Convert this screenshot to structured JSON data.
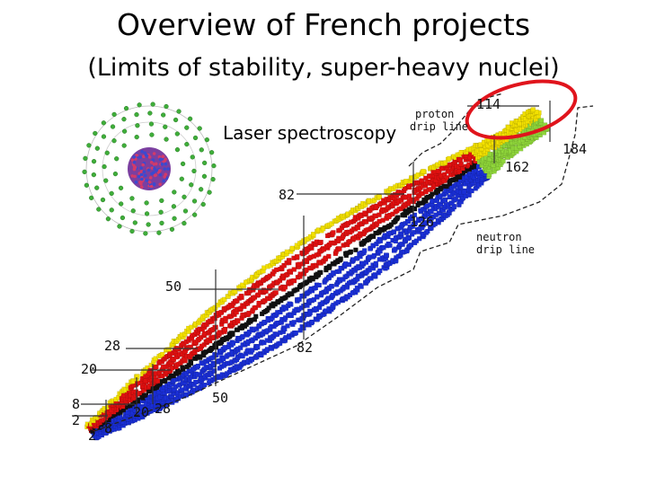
{
  "title": "Overview of French projects",
  "subtitle": "(Limits of stability, super-heavy nuclei)",
  "annotation": "Laser spectroscopy",
  "drip_lines": {
    "proton": [
      "proton",
      "drip line"
    ],
    "neutron": [
      "neutron",
      "drip line"
    ]
  },
  "magic_numbers": {
    "protons": [
      "2",
      "8",
      "20",
      "28",
      "50",
      "82",
      "114"
    ],
    "neutrons": [
      "2",
      "8",
      "20",
      "28",
      "50",
      "82",
      "126",
      "162",
      "184"
    ]
  },
  "colors": {
    "neutron_rich": "#1a2fd6",
    "proton_rich": "#e01010",
    "stable": "#111111",
    "edge": "#f2e000",
    "superheavy": "#8fd63a",
    "highlight": "#e0141c",
    "atom_nucleus": "#7b3fa0",
    "atom_shell": "#3fae3a"
  }
}
